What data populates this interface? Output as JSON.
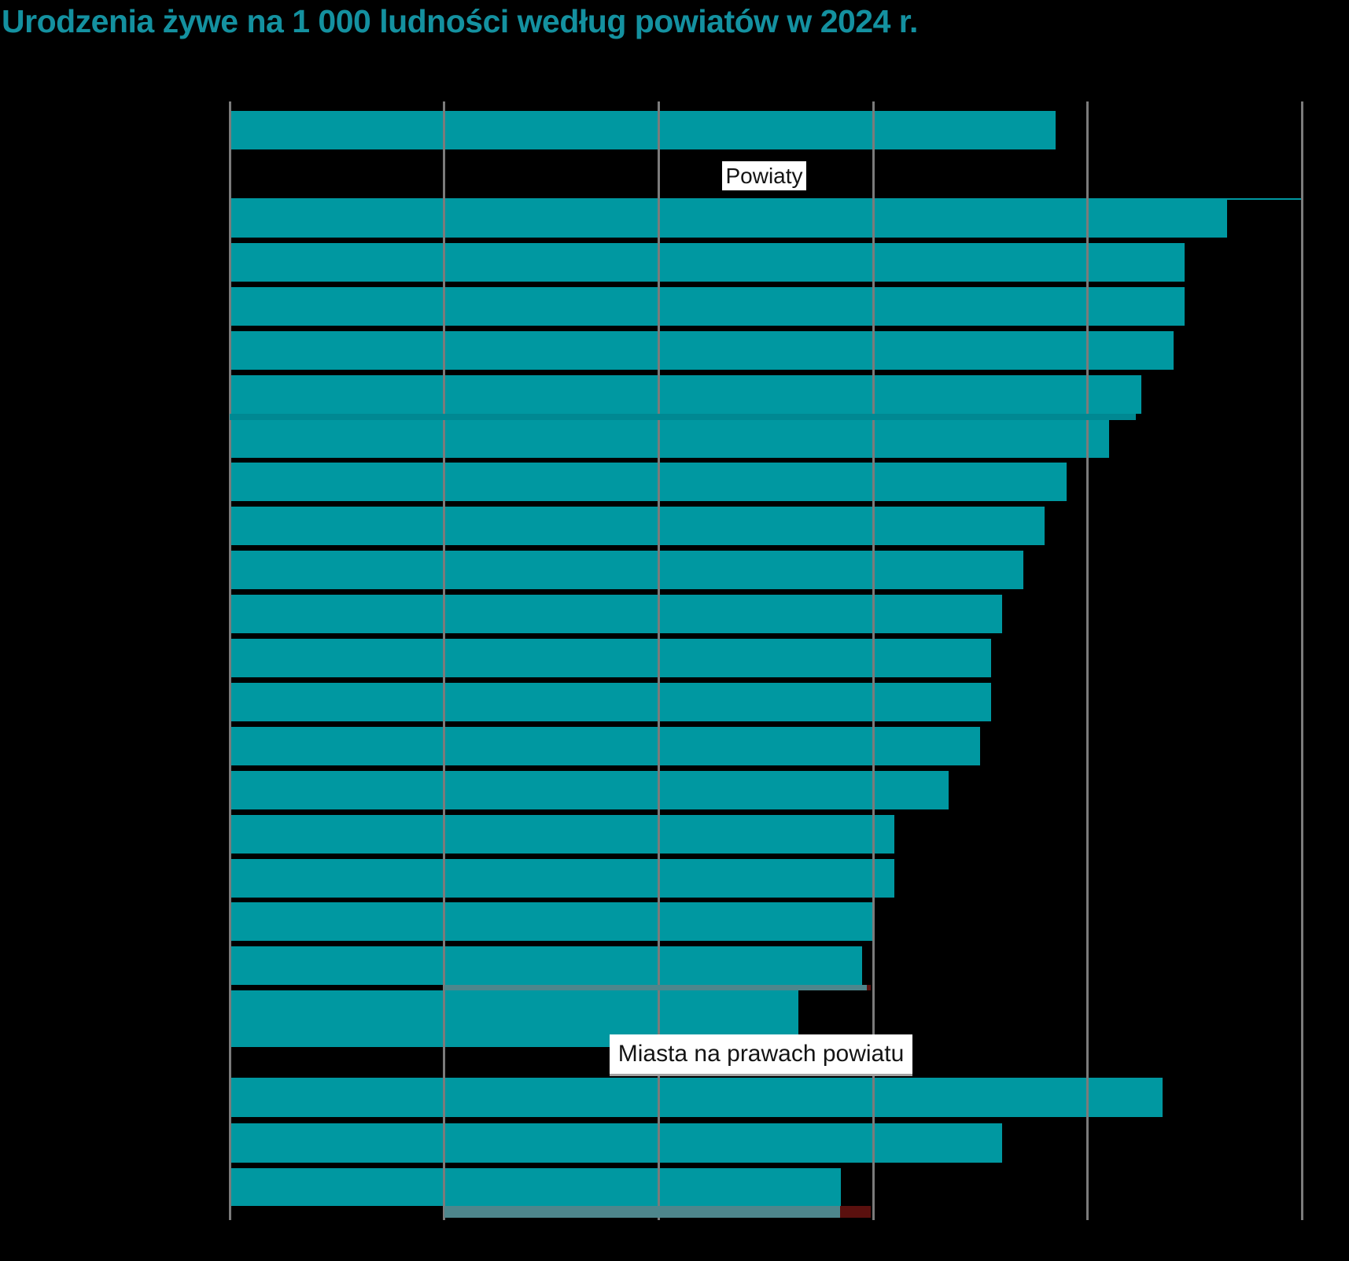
{
  "title": "Urodzenia żywe na 1 000 ludności według powiatów w 2024 r.",
  "section_labels": {
    "powiaty": "Powiaty",
    "miasta": "Miasta na prawach powiatu"
  },
  "colors": {
    "background": "#000000",
    "bar_teal": "#0098A1",
    "title_teal": "#1491A0",
    "gridline_gray": "#7b7b7b",
    "overlay_dark_teal": "#008892",
    "overlay_gray": "#4e868c",
    "overlay_dark_red": "#5a100e",
    "section_label_bg": "#ffffff",
    "section_label_text": "#141414",
    "miasta_label_underline": "#a3a3a3"
  },
  "chart_data": {
    "type": "bar",
    "orientation": "horizontal",
    "title": "Urodzenia żywe na 1 000 ludności według powiatów w 2024 r.",
    "xlabel": "",
    "ylabel": "",
    "xlim": [
      0,
      10
    ],
    "xticks_estimated": [
      0,
      2,
      4,
      6,
      8,
      10
    ],
    "grid": "vertical-gridlines-behind-bars",
    "legend": "none",
    "category_labels_visible": false,
    "note": "Axis tick labels and row category names are not visible in the screenshot (chart exported with transparent background, black text invisible on black). Bar values estimated from gridline spacing assuming ticks 0-10 every 2.",
    "series": [
      {
        "name": "",
        "section": "top-summary-row",
        "values": [
          7.7
        ]
      },
      {
        "name": "Powiaty",
        "section": "powiaty",
        "values": [
          9.3,
          8.9,
          8.9,
          8.8,
          8.5,
          8.2,
          7.8,
          7.6,
          7.4,
          7.2,
          7.1,
          7.1,
          7.0,
          6.7,
          6.2,
          6.2,
          6.0,
          5.9,
          5.3
        ]
      },
      {
        "name": "Miasta na prawach powiatu",
        "section": "miasta",
        "values": [
          8.7,
          7.2,
          5.7
        ]
      }
    ],
    "top_edge_line": {
      "section": "powiaty",
      "from": 0,
      "to": 10
    },
    "overlay_stripes": [
      {
        "after_section": "powiaty",
        "after_index": 4,
        "style": "dark-teal",
        "from": 0.0,
        "teal_to": 8.45
      },
      {
        "after_section": "powiaty",
        "after_index": 17,
        "style": "gray-red",
        "from": 2.0,
        "gray_to": 5.94,
        "red_to": 5.98
      },
      {
        "after_section": "miasta",
        "after_index": 2,
        "style": "gray-red",
        "from": 2.0,
        "gray_to": 5.69,
        "red_to": 5.98
      }
    ]
  }
}
